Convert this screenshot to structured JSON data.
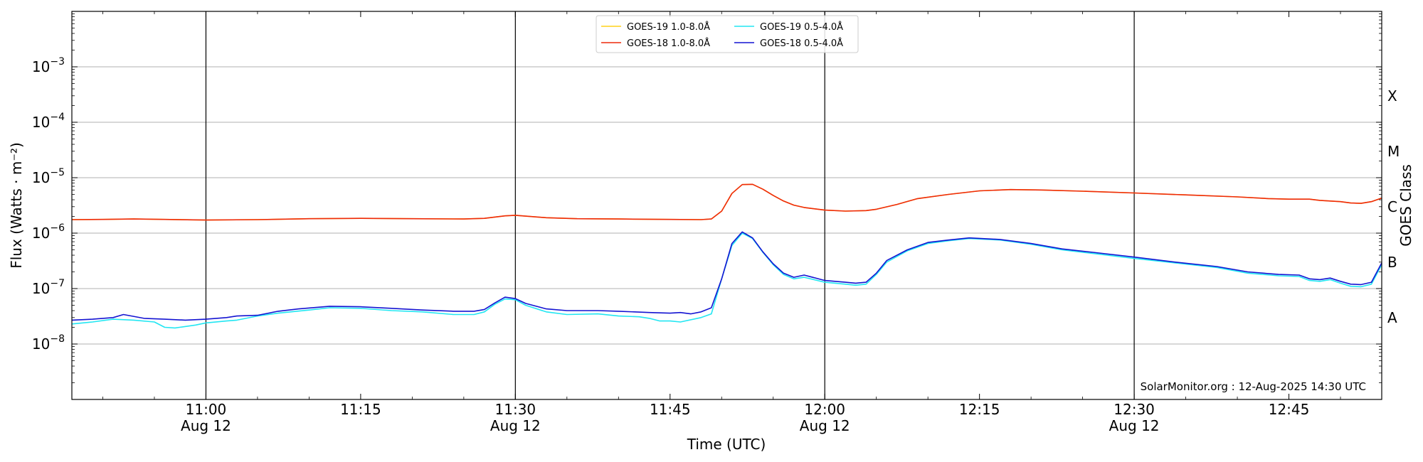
{
  "chart_data": {
    "type": "line",
    "xlabel": "Time (UTC)",
    "ylabel": "Flux (Watts · m⁻²)",
    "y2label": "GOES Class",
    "yscale": "log",
    "ylim": [
      1e-09,
      0.01
    ],
    "xlim": [
      "10:47",
      "12:54"
    ],
    "grid": "horizontal at each decade; vertical black lines at half-hour marks",
    "legend_placement": "top-center",
    "x_ticks": [
      {
        "time": "11:00",
        "label": "11:00",
        "sublabel": "Aug 12"
      },
      {
        "time": "11:15",
        "label": "11:15",
        "sublabel": ""
      },
      {
        "time": "11:30",
        "label": "11:30",
        "sublabel": "Aug 12"
      },
      {
        "time": "11:45",
        "label": "11:45",
        "sublabel": ""
      },
      {
        "time": "12:00",
        "label": "12:00",
        "sublabel": "Aug 12"
      },
      {
        "time": "12:15",
        "label": "12:15",
        "sublabel": ""
      },
      {
        "time": "12:30",
        "label": "12:30",
        "sublabel": "Aug 12"
      },
      {
        "time": "12:45",
        "label": "12:45",
        "sublabel": ""
      }
    ],
    "vertical_lines": [
      "11:00",
      "11:30",
      "12:00",
      "12:30"
    ],
    "y_ticks": [
      {
        "value": 1e-08,
        "mantissa": "10",
        "exponent": "−8"
      },
      {
        "value": 1e-07,
        "mantissa": "10",
        "exponent": "−7"
      },
      {
        "value": 1e-06,
        "mantissa": "10",
        "exponent": "−6"
      },
      {
        "value": 1e-05,
        "mantissa": "10",
        "exponent": "−5"
      },
      {
        "value": 0.0001,
        "mantissa": "10",
        "exponent": "−4"
      },
      {
        "value": 0.001,
        "mantissa": "10",
        "exponent": "−3"
      }
    ],
    "class_labels": [
      {
        "label": "A",
        "value": 3e-08
      },
      {
        "label": "B",
        "value": 3e-07
      },
      {
        "label": "C",
        "value": 3e-06
      },
      {
        "label": "M",
        "value": 3e-05
      },
      {
        "label": "X",
        "value": 0.0003
      }
    ],
    "series": [
      {
        "name": "GOES-19 1.0-8.0Å",
        "color": "#ffd21a",
        "points": [
          [
            "10:47",
            1.75e-06
          ],
          [
            "10:50",
            1.77e-06
          ],
          [
            "10:53",
            1.8e-06
          ],
          [
            "10:56",
            1.77e-06
          ],
          [
            "11:00",
            1.72e-06
          ],
          [
            "11:05",
            1.75e-06
          ],
          [
            "11:10",
            1.82e-06
          ],
          [
            "11:15",
            1.85e-06
          ],
          [
            "11:20",
            1.82e-06
          ],
          [
            "11:25",
            1.8e-06
          ],
          [
            "11:27",
            1.85e-06
          ],
          [
            "11:29",
            2.05e-06
          ],
          [
            "11:30",
            2.1e-06
          ],
          [
            "11:33",
            1.9e-06
          ],
          [
            "11:36",
            1.82e-06
          ],
          [
            "11:40",
            1.8e-06
          ],
          [
            "11:45",
            1.77e-06
          ],
          [
            "11:48",
            1.75e-06
          ],
          [
            "11:49",
            1.8e-06
          ],
          [
            "11:50",
            2.5e-06
          ],
          [
            "11:51",
            5.2e-06
          ],
          [
            "11:52",
            7.5e-06
          ],
          [
            "11:53",
            7.6e-06
          ],
          [
            "11:54",
            6.2e-06
          ],
          [
            "11:55",
            4.8e-06
          ],
          [
            "11:56",
            3.8e-06
          ],
          [
            "11:57",
            3.2e-06
          ],
          [
            "11:58",
            2.9e-06
          ],
          [
            "12:00",
            2.6e-06
          ],
          [
            "12:02",
            2.5e-06
          ],
          [
            "12:04",
            2.55e-06
          ],
          [
            "12:05",
            2.7e-06
          ],
          [
            "12:07",
            3.3e-06
          ],
          [
            "12:09",
            4.2e-06
          ],
          [
            "12:12",
            5e-06
          ],
          [
            "12:15",
            5.8e-06
          ],
          [
            "12:18",
            6.1e-06
          ],
          [
            "12:21",
            6e-06
          ],
          [
            "12:25",
            5.7e-06
          ],
          [
            "12:30",
            5.3e-06
          ],
          [
            "12:35",
            4.9e-06
          ],
          [
            "12:40",
            4.5e-06
          ],
          [
            "12:43",
            4.2e-06
          ],
          [
            "12:45",
            4.1e-06
          ],
          [
            "12:47",
            4.1e-06
          ],
          [
            "12:48",
            3.9e-06
          ],
          [
            "12:50",
            3.7e-06
          ],
          [
            "12:51",
            3.5e-06
          ],
          [
            "12:52",
            3.45e-06
          ],
          [
            "12:53",
            3.7e-06
          ],
          [
            "12:54",
            4.3e-06
          ]
        ]
      },
      {
        "name": "GOES-18 1.0-8.0Å",
        "color": "#ee2a0c",
        "points": [
          [
            "10:47",
            1.75e-06
          ],
          [
            "10:50",
            1.77e-06
          ],
          [
            "10:53",
            1.8e-06
          ],
          [
            "10:56",
            1.77e-06
          ],
          [
            "11:00",
            1.72e-06
          ],
          [
            "11:05",
            1.75e-06
          ],
          [
            "11:10",
            1.82e-06
          ],
          [
            "11:15",
            1.85e-06
          ],
          [
            "11:20",
            1.82e-06
          ],
          [
            "11:25",
            1.8e-06
          ],
          [
            "11:27",
            1.85e-06
          ],
          [
            "11:29",
            2.05e-06
          ],
          [
            "11:30",
            2.1e-06
          ],
          [
            "11:33",
            1.9e-06
          ],
          [
            "11:36",
            1.82e-06
          ],
          [
            "11:40",
            1.8e-06
          ],
          [
            "11:45",
            1.77e-06
          ],
          [
            "11:48",
            1.75e-06
          ],
          [
            "11:49",
            1.8e-06
          ],
          [
            "11:50",
            2.5e-06
          ],
          [
            "11:51",
            5.2e-06
          ],
          [
            "11:52",
            7.5e-06
          ],
          [
            "11:53",
            7.6e-06
          ],
          [
            "11:54",
            6.2e-06
          ],
          [
            "11:55",
            4.8e-06
          ],
          [
            "11:56",
            3.8e-06
          ],
          [
            "11:57",
            3.2e-06
          ],
          [
            "11:58",
            2.9e-06
          ],
          [
            "12:00",
            2.6e-06
          ],
          [
            "12:02",
            2.5e-06
          ],
          [
            "12:04",
            2.55e-06
          ],
          [
            "12:05",
            2.7e-06
          ],
          [
            "12:07",
            3.3e-06
          ],
          [
            "12:09",
            4.2e-06
          ],
          [
            "12:12",
            5e-06
          ],
          [
            "12:15",
            5.8e-06
          ],
          [
            "12:18",
            6.1e-06
          ],
          [
            "12:21",
            6e-06
          ],
          [
            "12:25",
            5.7e-06
          ],
          [
            "12:30",
            5.3e-06
          ],
          [
            "12:35",
            4.9e-06
          ],
          [
            "12:40",
            4.5e-06
          ],
          [
            "12:43",
            4.2e-06
          ],
          [
            "12:45",
            4.1e-06
          ],
          [
            "12:47",
            4.1e-06
          ],
          [
            "12:48",
            3.9e-06
          ],
          [
            "12:50",
            3.7e-06
          ],
          [
            "12:51",
            3.5e-06
          ],
          [
            "12:52",
            3.45e-06
          ],
          [
            "12:53",
            3.7e-06
          ],
          [
            "12:54",
            4.3e-06
          ]
        ]
      },
      {
        "name": "GOES-19 0.5-4.0Å",
        "color": "#22e6f2",
        "points": [
          [
            "10:47",
            2.3e-08
          ],
          [
            "10:49",
            2.5e-08
          ],
          [
            "10:51",
            2.8e-08
          ],
          [
            "10:53",
            2.7e-08
          ],
          [
            "10:55",
            2.5e-08
          ],
          [
            "10:56",
            2e-08
          ],
          [
            "10:57",
            1.95e-08
          ],
          [
            "10:59",
            2.2e-08
          ],
          [
            "11:00",
            2.4e-08
          ],
          [
            "11:02",
            2.6e-08
          ],
          [
            "11:03",
            2.7e-08
          ],
          [
            "11:05",
            3.2e-08
          ],
          [
            "11:07",
            3.6e-08
          ],
          [
            "11:10",
            4.1e-08
          ],
          [
            "11:12",
            4.5e-08
          ],
          [
            "11:15",
            4.4e-08
          ],
          [
            "11:18",
            4e-08
          ],
          [
            "11:21",
            3.8e-08
          ],
          [
            "11:24",
            3.4e-08
          ],
          [
            "11:26",
            3.4e-08
          ],
          [
            "11:27",
            3.8e-08
          ],
          [
            "11:28",
            5.2e-08
          ],
          [
            "11:29",
            6.5e-08
          ],
          [
            "11:30",
            6.3e-08
          ],
          [
            "11:31",
            5e-08
          ],
          [
            "11:33",
            3.8e-08
          ],
          [
            "11:35",
            3.4e-08
          ],
          [
            "11:38",
            3.5e-08
          ],
          [
            "11:40",
            3.2e-08
          ],
          [
            "11:42",
            3.1e-08
          ],
          [
            "11:43",
            2.9e-08
          ],
          [
            "11:44",
            2.6e-08
          ],
          [
            "11:45",
            2.6e-08
          ],
          [
            "11:46",
            2.5e-08
          ],
          [
            "11:48",
            3e-08
          ],
          [
            "11:49",
            3.5e-08
          ],
          [
            "11:50",
            1.5e-07
          ],
          [
            "11:51",
            6e-07
          ],
          [
            "11:52",
            1e-06
          ],
          [
            "11:53",
            8e-07
          ],
          [
            "11:54",
            4.5e-07
          ],
          [
            "11:55",
            2.7e-07
          ],
          [
            "11:56",
            1.8e-07
          ],
          [
            "11:57",
            1.5e-07
          ],
          [
            "11:58",
            1.6e-07
          ],
          [
            "12:00",
            1.3e-07
          ],
          [
            "12:02",
            1.2e-07
          ],
          [
            "12:03",
            1.15e-07
          ],
          [
            "12:04",
            1.2e-07
          ],
          [
            "12:05",
            1.8e-07
          ],
          [
            "12:06",
            3e-07
          ],
          [
            "12:08",
            4.8e-07
          ],
          [
            "12:10",
            6.5e-07
          ],
          [
            "12:12",
            7.3e-07
          ],
          [
            "12:14",
            8e-07
          ],
          [
            "12:17",
            7.5e-07
          ],
          [
            "12:20",
            6.3e-07
          ],
          [
            "12:23",
            5e-07
          ],
          [
            "12:26",
            4.3e-07
          ],
          [
            "12:30",
            3.5e-07
          ],
          [
            "12:34",
            2.9e-07
          ],
          [
            "12:38",
            2.4e-07
          ],
          [
            "12:41",
            1.9e-07
          ],
          [
            "12:44",
            1.7e-07
          ],
          [
            "12:46",
            1.65e-07
          ],
          [
            "12:47",
            1.4e-07
          ],
          [
            "12:48",
            1.35e-07
          ],
          [
            "12:49",
            1.45e-07
          ],
          [
            "12:50",
            1.25e-07
          ],
          [
            "12:51",
            1.1e-07
          ],
          [
            "12:52",
            1.08e-07
          ],
          [
            "12:53",
            1.2e-07
          ],
          [
            "12:54",
            2.7e-07
          ]
        ]
      },
      {
        "name": "GOES-18 0.5-4.0Å",
        "color": "#1414d2",
        "points": [
          [
            "10:47",
            2.7e-08
          ],
          [
            "10:49",
            2.8e-08
          ],
          [
            "10:51",
            3e-08
          ],
          [
            "10:52",
            3.4e-08
          ],
          [
            "10:54",
            2.9e-08
          ],
          [
            "10:56",
            2.8e-08
          ],
          [
            "10:58",
            2.7e-08
          ],
          [
            "11:00",
            2.8e-08
          ],
          [
            "11:02",
            3e-08
          ],
          [
            "11:03",
            3.2e-08
          ],
          [
            "11:05",
            3.3e-08
          ],
          [
            "11:07",
            3.9e-08
          ],
          [
            "11:09",
            4.3e-08
          ],
          [
            "11:12",
            4.8e-08
          ],
          [
            "11:15",
            4.7e-08
          ],
          [
            "11:18",
            4.4e-08
          ],
          [
            "11:21",
            4.1e-08
          ],
          [
            "11:24",
            3.9e-08
          ],
          [
            "11:26",
            3.9e-08
          ],
          [
            "11:27",
            4.2e-08
          ],
          [
            "11:28",
            5.5e-08
          ],
          [
            "11:29",
            7e-08
          ],
          [
            "11:30",
            6.6e-08
          ],
          [
            "11:31",
            5.4e-08
          ],
          [
            "11:33",
            4.3e-08
          ],
          [
            "11:35",
            4e-08
          ],
          [
            "11:38",
            4e-08
          ],
          [
            "11:40",
            3.9e-08
          ],
          [
            "11:43",
            3.7e-08
          ],
          [
            "11:45",
            3.6e-08
          ],
          [
            "11:46",
            3.7e-08
          ],
          [
            "11:47",
            3.5e-08
          ],
          [
            "11:48",
            3.8e-08
          ],
          [
            "11:49",
            4.5e-08
          ],
          [
            "11:50",
            1.5e-07
          ],
          [
            "11:51",
            6.5e-07
          ],
          [
            "11:52",
            1.05e-06
          ],
          [
            "11:53",
            8.2e-07
          ],
          [
            "11:54",
            4.6e-07
          ],
          [
            "11:55",
            2.8e-07
          ],
          [
            "11:56",
            1.9e-07
          ],
          [
            "11:57",
            1.6e-07
          ],
          [
            "11:58",
            1.75e-07
          ],
          [
            "12:00",
            1.4e-07
          ],
          [
            "12:02",
            1.3e-07
          ],
          [
            "12:03",
            1.25e-07
          ],
          [
            "12:04",
            1.3e-07
          ],
          [
            "12:05",
            1.9e-07
          ],
          [
            "12:06",
            3.2e-07
          ],
          [
            "12:08",
            5e-07
          ],
          [
            "12:10",
            6.8e-07
          ],
          [
            "12:12",
            7.5e-07
          ],
          [
            "12:14",
            8.2e-07
          ],
          [
            "12:17",
            7.7e-07
          ],
          [
            "12:20",
            6.5e-07
          ],
          [
            "12:23",
            5.2e-07
          ],
          [
            "12:26",
            4.5e-07
          ],
          [
            "12:30",
            3.7e-07
          ],
          [
            "12:34",
            3e-07
          ],
          [
            "12:38",
            2.5e-07
          ],
          [
            "12:41",
            2e-07
          ],
          [
            "12:44",
            1.8e-07
          ],
          [
            "12:46",
            1.75e-07
          ],
          [
            "12:47",
            1.5e-07
          ],
          [
            "12:48",
            1.45e-07
          ],
          [
            "12:49",
            1.55e-07
          ],
          [
            "12:50",
            1.35e-07
          ],
          [
            "12:51",
            1.2e-07
          ],
          [
            "12:52",
            1.18e-07
          ],
          [
            "12:53",
            1.3e-07
          ],
          [
            "12:54",
            2.9e-07
          ]
        ]
      }
    ],
    "annotation": "SolarMonitor.org : 12-Aug-2025 14:30 UTC"
  }
}
